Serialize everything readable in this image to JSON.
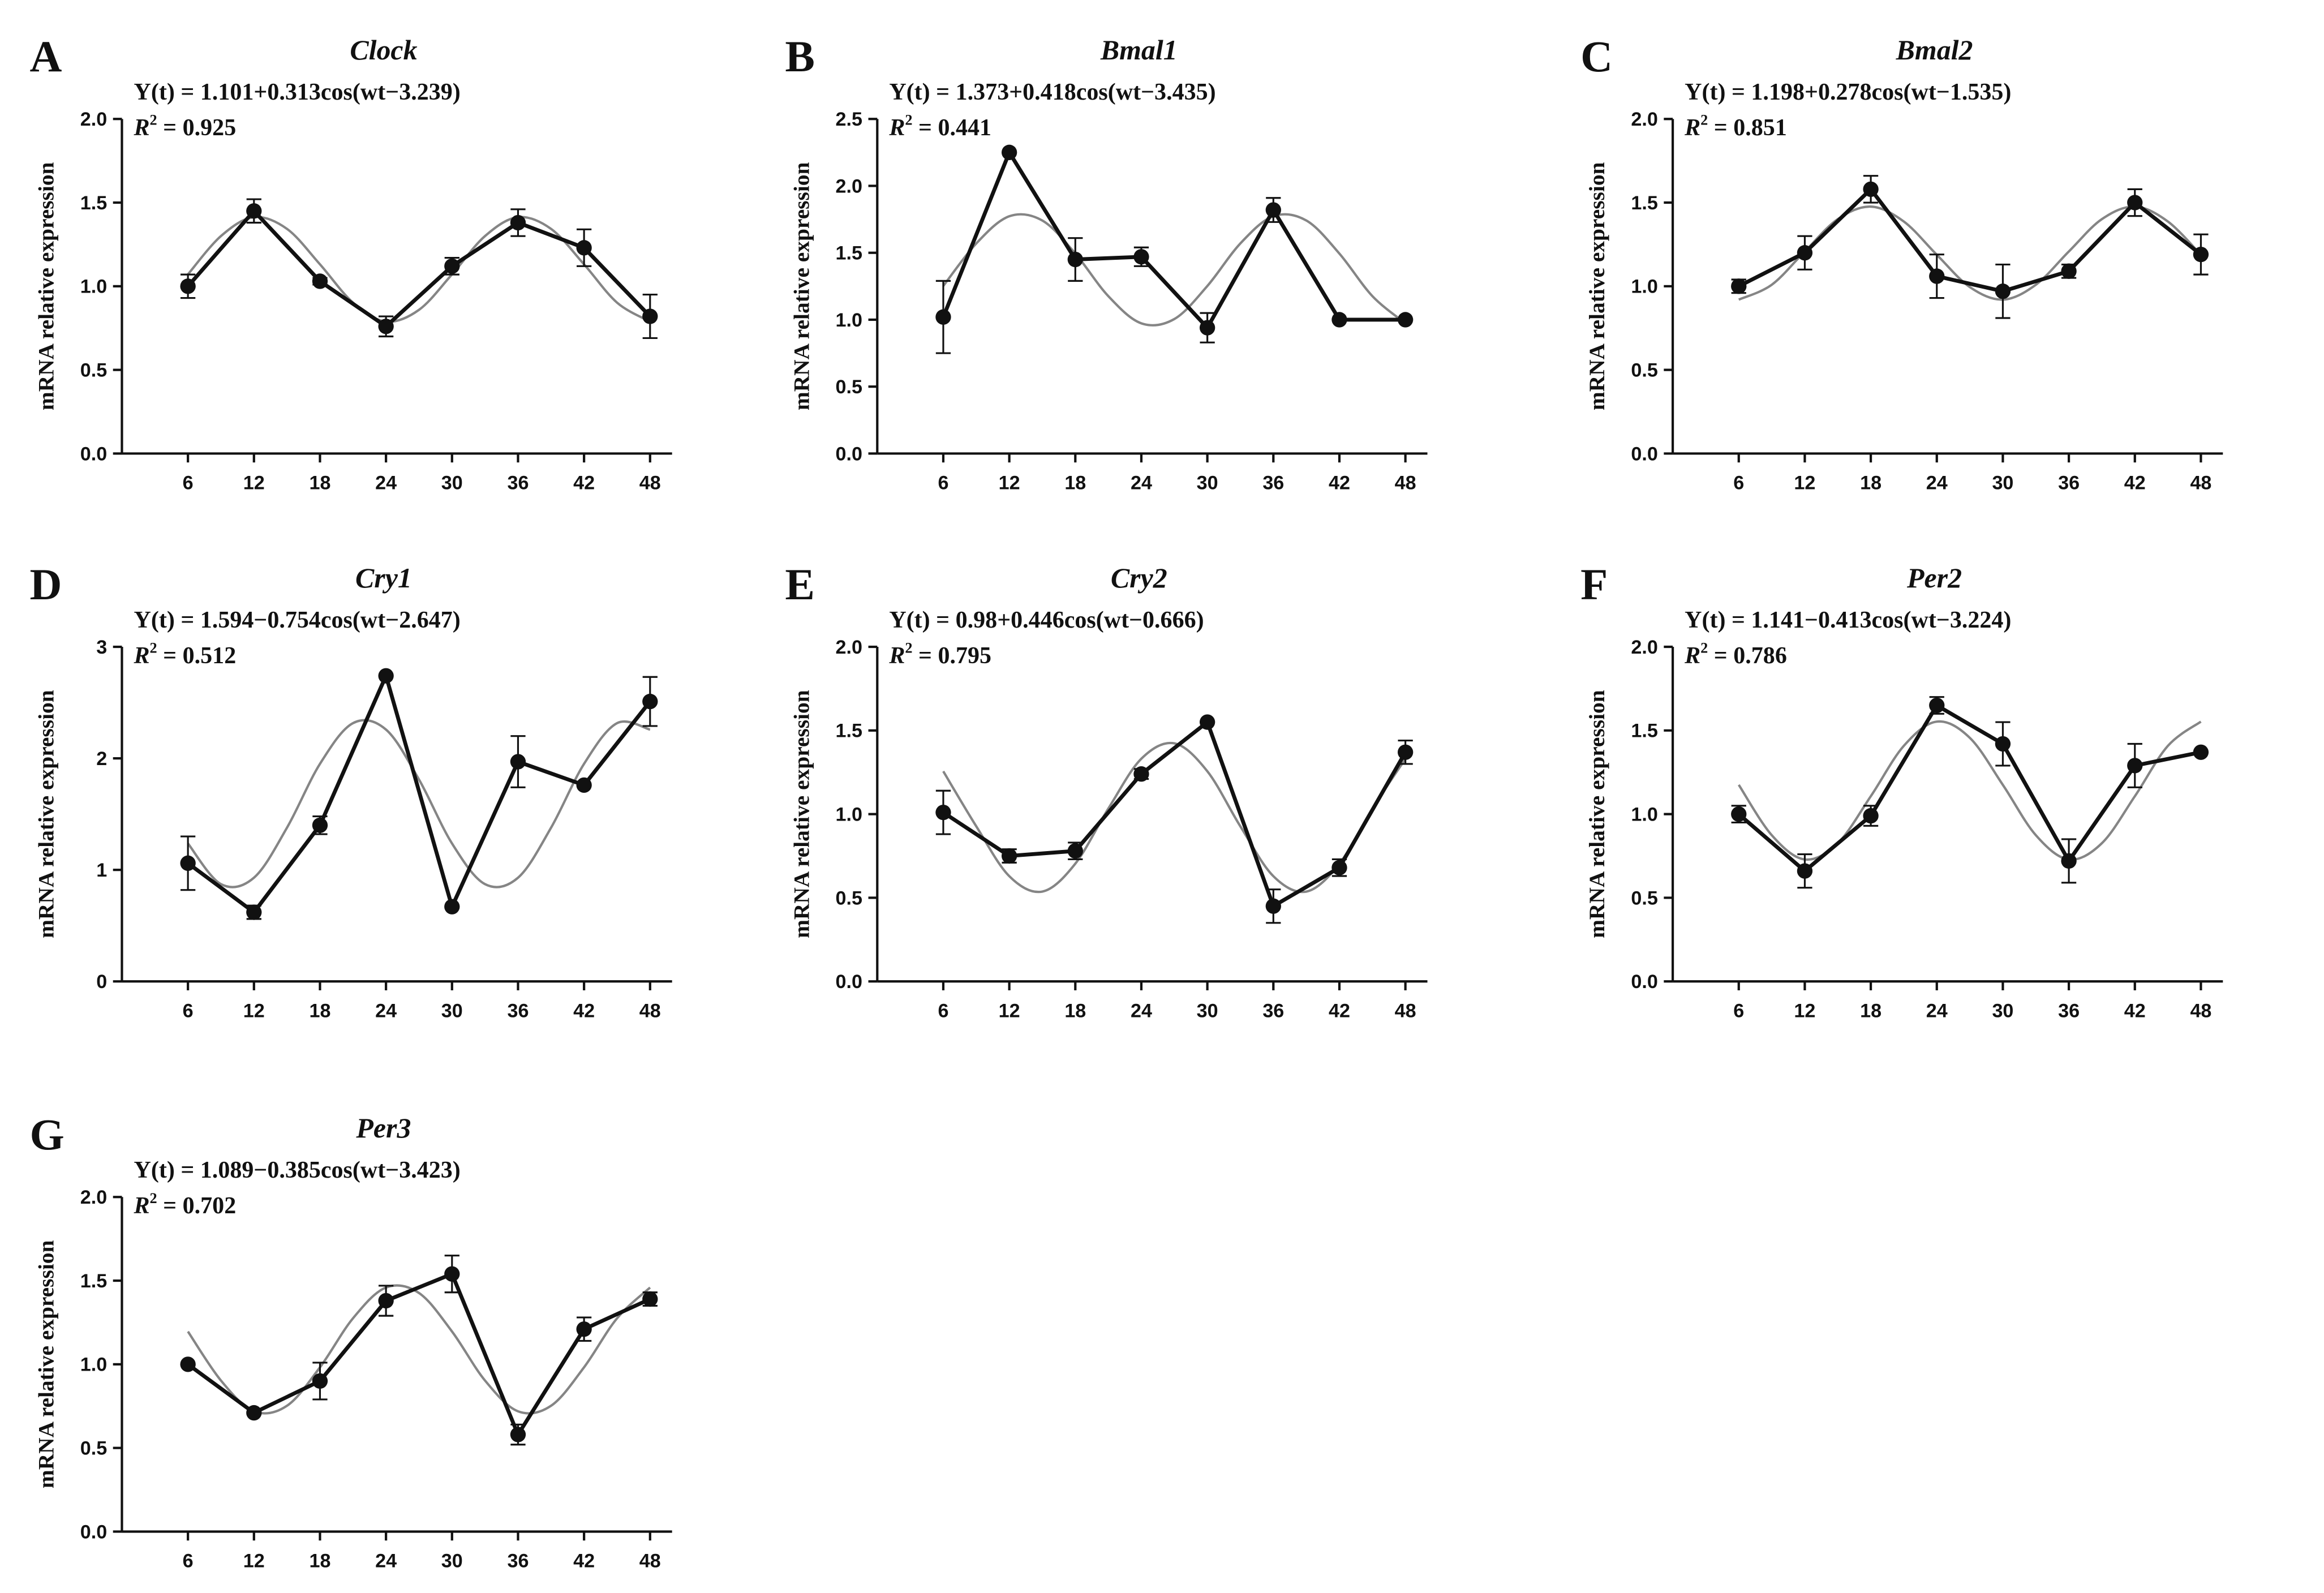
{
  "chart_data": [
    {
      "type": "line",
      "panel": "A",
      "title": "Clock",
      "equation": "Y(t) = 1.101+0.313cos(wt−3.239)",
      "r2": {
        "symbol": "R",
        "exponent": "2",
        "text": " = 0.925"
      },
      "ylabel": "mRNA relative expression",
      "x": [
        6,
        12,
        18,
        24,
        30,
        36,
        42,
        48
      ],
      "xlim": [
        0,
        50
      ],
      "xticks": [
        6,
        12,
        18,
        24,
        30,
        36,
        42,
        48
      ],
      "ylim": [
        0,
        2
      ],
      "yticks": [
        {
          "value": 0,
          "label": "0.0"
        },
        {
          "value": 0.5,
          "label": "0.5"
        },
        {
          "value": 1,
          "label": "1.0"
        },
        {
          "value": 1.5,
          "label": "1.5"
        },
        {
          "value": 2,
          "label": "2.0"
        }
      ],
      "series": [
        {
          "color": "#111111",
          "values": [
            1.0,
            1.45,
            1.03,
            0.76,
            1.12,
            1.38,
            1.23,
            0.82
          ],
          "errors": [
            0.07,
            0.07,
            0.02,
            0.06,
            0.05,
            0.08,
            0.11,
            0.13
          ]
        }
      ],
      "fit": {
        "color": "#858585",
        "x": [
          6,
          9,
          12,
          15,
          18,
          21,
          24,
          27,
          30,
          33,
          36,
          39,
          42,
          45,
          48
        ],
        "values": [
          1.071,
          1.3,
          1.413,
          1.343,
          1.131,
          0.902,
          0.789,
          0.859,
          1.071,
          1.3,
          1.413,
          1.343,
          1.131,
          0.902,
          0.789
        ]
      }
    },
    {
      "type": "line",
      "panel": "B",
      "title": "Bmal1",
      "equation": "Y(t) = 1.373+0.418cos(wt−3.435)",
      "r2": {
        "symbol": "R",
        "exponent": "2",
        "text": " = 0.441"
      },
      "ylabel": "mRNA relative expression",
      "x": [
        6,
        12,
        18,
        24,
        30,
        36,
        42,
        48
      ],
      "xlim": [
        0,
        50
      ],
      "xticks": [
        6,
        12,
        18,
        24,
        30,
        36,
        42,
        48
      ],
      "ylim": [
        0,
        2.5
      ],
      "yticks": [
        {
          "value": 0,
          "label": "0.0"
        },
        {
          "value": 0.5,
          "label": "0.5"
        },
        {
          "value": 1,
          "label": "1.0"
        },
        {
          "value": 1.5,
          "label": "1.5"
        },
        {
          "value": 2,
          "label": "2.0"
        },
        {
          "value": 2.5,
          "label": "2.5"
        }
      ],
      "series": [
        {
          "color": "#111111",
          "values": [
            1.02,
            2.25,
            1.45,
            1.47,
            0.94,
            1.82,
            1.0,
            1.0
          ],
          "errors": [
            0.27,
            0,
            0.16,
            0.07,
            0.11,
            0.09,
            0,
            0
          ]
        }
      ],
      "fit": {
        "color": "#858585",
        "x": [
          6,
          9,
          12,
          15,
          18,
          21,
          24,
          27,
          30,
          33,
          36,
          39,
          42,
          45,
          48
        ],
        "values": [
          1.252,
          1.57,
          1.773,
          1.741,
          1.494,
          1.176,
          0.973,
          1.005,
          1.252,
          1.57,
          1.773,
          1.741,
          1.494,
          1.176,
          0.973
        ]
      }
    },
    {
      "type": "line",
      "panel": "C",
      "title": "Bmal2",
      "equation": "Y(t) = 1.198+0.278cos(wt−1.535)",
      "r2": {
        "symbol": "R",
        "exponent": "2",
        "text": " = 0.851"
      },
      "ylabel": "mRNA relative expression",
      "x": [
        6,
        12,
        18,
        24,
        30,
        36,
        42,
        48
      ],
      "xlim": [
        0,
        50
      ],
      "xticks": [
        6,
        12,
        18,
        24,
        30,
        36,
        42,
        48
      ],
      "ylim": [
        0,
        2
      ],
      "yticks": [
        {
          "value": 0,
          "label": "0.0"
        },
        {
          "value": 0.5,
          "label": "0.5"
        },
        {
          "value": 1,
          "label": "1.0"
        },
        {
          "value": 1.5,
          "label": "1.5"
        },
        {
          "value": 2,
          "label": "2.0"
        }
      ],
      "series": [
        {
          "color": "#111111",
          "values": [
            1.0,
            1.2,
            1.58,
            1.06,
            0.97,
            1.09,
            1.5,
            1.19
          ],
          "errors": [
            0.04,
            0.1,
            0.08,
            0.13,
            0.16,
            0.04,
            0.08,
            0.12
          ]
        }
      ],
      "fit": {
        "color": "#858585",
        "x": [
          6,
          9,
          12,
          15,
          18,
          21,
          24,
          27,
          30,
          33,
          36,
          39,
          42,
          45,
          48
        ],
        "values": [
          0.92,
          1.009,
          1.208,
          1.401,
          1.476,
          1.387,
          1.188,
          0.995,
          0.92,
          1.009,
          1.208,
          1.401,
          1.476,
          1.387,
          1.188
        ]
      }
    },
    {
      "type": "line",
      "panel": "D",
      "title": "Cry1",
      "equation": "Y(t) = 1.594−0.754cos(wt−2.647)",
      "r2": {
        "symbol": "R",
        "exponent": "2",
        "text": " = 0.512"
      },
      "ylabel": "mRNA relative expression",
      "x": [
        6,
        12,
        18,
        24,
        30,
        36,
        42,
        48
      ],
      "xlim": [
        0,
        50
      ],
      "xticks": [
        6,
        12,
        18,
        24,
        30,
        36,
        42,
        48
      ],
      "ylim": [
        0,
        3
      ],
      "yticks": [
        0,
        1,
        2,
        3
      ],
      "series": [
        {
          "color": "#111111",
          "values": [
            1.06,
            0.62,
            1.4,
            2.74,
            0.67,
            1.97,
            1.76,
            2.51
          ],
          "errors": [
            0.24,
            0.06,
            0.08,
            0,
            0,
            0.23,
            0,
            0.22
          ]
        }
      ],
      "fit": {
        "color": "#858585",
        "x": [
          6,
          9,
          12,
          15,
          18,
          21,
          24,
          27,
          30,
          33,
          36,
          39,
          42,
          45,
          48
        ],
        "values": [
          1.237,
          0.872,
          0.93,
          1.378,
          1.951,
          2.316,
          2.258,
          1.81,
          1.237,
          0.872,
          0.93,
          1.378,
          1.951,
          2.316,
          2.258
        ]
      }
    },
    {
      "type": "line",
      "panel": "E",
      "title": "Cry2",
      "equation": "Y(t) = 0.98+0.446cos(wt−0.666)",
      "r2": {
        "symbol": "R",
        "exponent": "2",
        "text": " = 0.795"
      },
      "ylabel": "mRNA relative expression",
      "x": [
        6,
        12,
        18,
        24,
        30,
        36,
        42,
        48
      ],
      "xlim": [
        0,
        50
      ],
      "xticks": [
        6,
        12,
        18,
        24,
        30,
        36,
        42,
        48
      ],
      "ylim": [
        0,
        2
      ],
      "yticks": [
        {
          "value": 0,
          "label": "0.0"
        },
        {
          "value": 0.5,
          "label": "0.5"
        },
        {
          "value": 1,
          "label": "1.0"
        },
        {
          "value": 1.5,
          "label": "1.5"
        },
        {
          "value": 2,
          "label": "2.0"
        }
      ],
      "series": [
        {
          "color": "#111111",
          "values": [
            1.01,
            0.75,
            0.78,
            1.24,
            1.55,
            0.45,
            0.68,
            1.37
          ],
          "errors": [
            0.13,
            0.04,
            0.05,
            0.03,
            0,
            0.1,
            0.05,
            0.07
          ]
        }
      ],
      "fit": {
        "color": "#858585",
        "x": [
          6,
          9,
          12,
          15,
          18,
          21,
          24,
          27,
          30,
          33,
          36,
          39,
          42,
          45,
          48
        ],
        "values": [
          1.256,
          0.927,
          0.629,
          0.537,
          0.704,
          1.033,
          1.331,
          1.423,
          1.256,
          0.927,
          0.629,
          0.537,
          0.704,
          1.033,
          1.331
        ]
      }
    },
    {
      "type": "line",
      "panel": "F",
      "title": "Per2",
      "equation": "Y(t) = 1.141−0.413cos(wt−3.224)",
      "r2": {
        "symbol": "R",
        "exponent": "2",
        "text": " = 0.786"
      },
      "ylabel": "mRNA relative expression",
      "x": [
        6,
        12,
        18,
        24,
        30,
        36,
        42,
        48
      ],
      "xlim": [
        0,
        50
      ],
      "xticks": [
        6,
        12,
        18,
        24,
        30,
        36,
        42,
        48
      ],
      "ylim": [
        0,
        2
      ],
      "yticks": [
        {
          "value": 0,
          "label": "0.0"
        },
        {
          "value": 0.5,
          "label": "0.5"
        },
        {
          "value": 1,
          "label": "1.0"
        },
        {
          "value": 1.5,
          "label": "1.5"
        },
        {
          "value": 2,
          "label": "2.0"
        }
      ],
      "series": [
        {
          "color": "#111111",
          "values": [
            1.0,
            0.66,
            0.99,
            1.65,
            1.42,
            0.72,
            1.29,
            1.37
          ],
          "errors": [
            0.05,
            0.1,
            0.06,
            0.05,
            0.13,
            0.13,
            0.13,
            0
          ]
        }
      ],
      "fit": {
        "color": "#858585",
        "x": [
          6,
          9,
          12,
          15,
          18,
          21,
          24,
          27,
          30,
          33,
          36,
          39,
          42,
          45,
          48
        ],
        "values": [
          1.175,
          0.874,
          0.729,
          0.826,
          1.107,
          1.408,
          1.553,
          1.456,
          1.175,
          0.874,
          0.729,
          0.826,
          1.107,
          1.408,
          1.553
        ]
      }
    },
    {
      "type": "line",
      "panel": "G",
      "title": "Per3",
      "equation": "Y(t) = 1.089−0.385cos(wt−3.423)",
      "r2": {
        "symbol": "R",
        "exponent": "2",
        "text": " = 0.702"
      },
      "ylabel": "mRNA relative expression",
      "x": [
        6,
        12,
        18,
        24,
        30,
        36,
        42,
        48
      ],
      "xlim": [
        0,
        50
      ],
      "xticks": [
        6,
        12,
        18,
        24,
        30,
        36,
        42,
        48
      ],
      "ylim": [
        0,
        2
      ],
      "yticks": [
        {
          "value": 0,
          "label": "0.0"
        },
        {
          "value": 0.5,
          "label": "0.5"
        },
        {
          "value": 1,
          "label": "1.0"
        },
        {
          "value": 1.5,
          "label": "1.5"
        },
        {
          "value": 2,
          "label": "2.0"
        }
      ],
      "series": [
        {
          "color": "#111111",
          "values": [
            1.0,
            0.71,
            0.9,
            1.38,
            1.54,
            0.58,
            1.21,
            1.39
          ],
          "errors": [
            0,
            0,
            0.11,
            0.09,
            0.11,
            0.06,
            0.07,
            0.04
          ]
        }
      ],
      "fit": {
        "color": "#858585",
        "x": [
          6,
          9,
          12,
          15,
          18,
          21,
          24,
          27,
          30,
          33,
          36,
          39,
          42,
          45,
          48
        ],
        "values": [
          1.196,
          0.903,
          0.719,
          0.752,
          0.982,
          1.275,
          1.459,
          1.426,
          1.196,
          0.903,
          0.719,
          0.752,
          0.982,
          1.275,
          1.459
        ]
      }
    }
  ]
}
